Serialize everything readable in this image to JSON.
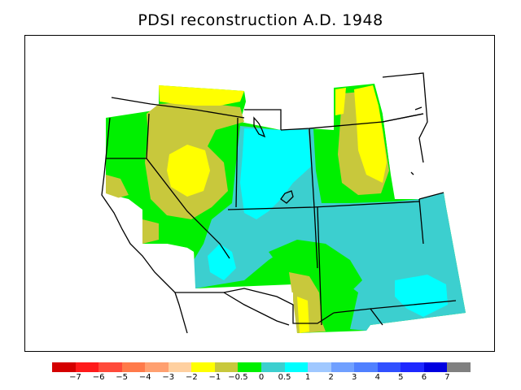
{
  "title": "PDSI reconstruction A.D. 1948",
  "colorbar": {
    "colors": [
      "#d40000",
      "#ff1a1a",
      "#ff4a3a",
      "#ff7a4a",
      "#ffa070",
      "#ffd0a0",
      "#ffff00",
      "#c8c83c",
      "#00f000",
      "#3ccfcf",
      "#00ffff",
      "#a0c8ff",
      "#70a0ff",
      "#5080ff",
      "#3050ff",
      "#1e28ff",
      "#0000e0",
      "#808080"
    ],
    "labels": [
      "−7",
      "−6",
      "−5",
      "−4",
      "−3",
      "−2",
      "−1",
      "−0.5",
      "0",
      "0.5",
      "1",
      "2",
      "3",
      "4",
      "5",
      "6",
      "7"
    ]
  },
  "colors": {
    "yellow": "#ffff00",
    "olive": "#c8c83c",
    "green": "#00f000",
    "teal": "#3ccfcf",
    "cyan": "#00ffff",
    "border": "#000000"
  }
}
